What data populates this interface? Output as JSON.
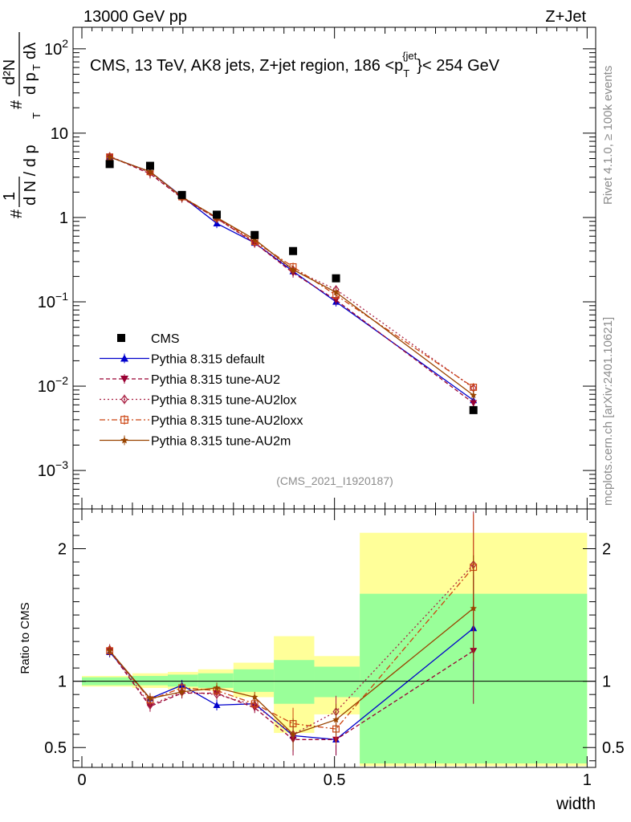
{
  "header": {
    "left": "13000 GeV pp",
    "right": "Z+Jet",
    "side_rivet": "Rivet 4.1.0, ≥ 100k events",
    "side_mcplots": "mcplots.cern.ch [arXiv:2401.10621]",
    "analysis_id": "(CMS_2021_I1920187)"
  },
  "chart_data": [
    {
      "type": "line",
      "scale": "log",
      "title": "CMS, 13 TeV, AK8 jets, Z+jet region, 186 <p_T^{jet}< 254 GeV",
      "title_parts": {
        "prefix": "CMS, 13 TeV, AK8 jets, Z+jet region, 186 <p",
        "sub": "T",
        "sup": "{jet",
        "suffix": "}< 254 GeV"
      },
      "ylabel_parts": {
        "hash": "#",
        "one": "1",
        "den": "d N / d p",
        "T": "T",
        "num": "d²N",
        "den2": "d p",
        "lambda": "dλ"
      },
      "xlabel": "width",
      "xlim": [
        0,
        1
      ],
      "ylim": [
        0.00035,
        180
      ],
      "y_ticks": [
        {
          "value": 0.001,
          "base": "10",
          "exp": "−3"
        },
        {
          "value": 0.01,
          "base": "10",
          "exp": "−2"
        },
        {
          "value": 0.1,
          "base": "10",
          "exp": "−1"
        },
        {
          "value": 1,
          "base": "1",
          "exp": ""
        },
        {
          "value": 10,
          "base": "10",
          "exp": ""
        },
        {
          "value": 100,
          "base": "10",
          "exp": "2"
        }
      ],
      "x": [
        0.055,
        0.135,
        0.198,
        0.267,
        0.342,
        0.418,
        0.503,
        0.775
      ],
      "cms": {
        "name": "CMS",
        "values": [
          4.3,
          4.1,
          1.85,
          1.08,
          0.62,
          0.4,
          0.19,
          0.0052
        ],
        "color": "#000000"
      },
      "series": [
        {
          "name": "Pythia 8.315 default",
          "values": [
            5.2,
            3.5,
            1.78,
            0.85,
            0.5,
            0.23,
            0.1,
            0.0068
          ],
          "color": "#0000cc",
          "marker": "triangle-up",
          "dash": ""
        },
        {
          "name": "Pythia 8.315 tune-AU2",
          "values": [
            5.3,
            3.3,
            1.7,
            0.98,
            0.5,
            0.22,
            0.105,
            0.0063
          ],
          "color": "#990033",
          "marker": "triangle-down",
          "dash": "5,3"
        },
        {
          "name": "Pythia 8.315 tune-AU2lox",
          "values": [
            5.3,
            3.4,
            1.72,
            0.97,
            0.5,
            0.24,
            0.14,
            0.0095
          ],
          "color": "#aa2244",
          "marker": "diamond",
          "dash": "2,3"
        },
        {
          "name": "Pythia 8.315 tune-AU2loxx",
          "values": [
            5.2,
            3.5,
            1.76,
            1.0,
            0.52,
            0.26,
            0.12,
            0.0097
          ],
          "color": "#cc4411",
          "marker": "open-square",
          "dash": "7,3,2,3"
        },
        {
          "name": "Pythia 8.315 tune-AU2m",
          "values": [
            5.2,
            3.5,
            1.75,
            1.0,
            0.55,
            0.24,
            0.13,
            0.0078
          ],
          "color": "#994400",
          "marker": "star",
          "dash": ""
        }
      ]
    },
    {
      "type": "line",
      "ylabel": "Ratio to CMS",
      "xlabel": "width",
      "xlim": [
        0,
        1
      ],
      "ylim": [
        0.35,
        2.3
      ],
      "y_ticks": [
        "0.5",
        "1",
        "2"
      ],
      "y_tick_values": [
        0.5,
        1,
        2
      ],
      "x_ticks": [
        "0",
        "0.5",
        "1"
      ],
      "x_tick_values": [
        0,
        0.5,
        1
      ],
      "band_bins": [
        0,
        0.1,
        0.17,
        0.23,
        0.3,
        0.38,
        0.46,
        0.55,
        1
      ],
      "band_yellow": [
        [
          0.96,
          1.04
        ],
        [
          0.95,
          1.06
        ],
        [
          0.94,
          1.07
        ],
        [
          0.93,
          1.09
        ],
        [
          0.88,
          1.14
        ],
        [
          0.61,
          1.34
        ],
        [
          0.75,
          1.19
        ],
        [
          0.36,
          2.12
        ]
      ],
      "band_green": [
        [
          0.97,
          1.03
        ],
        [
          0.97,
          1.04
        ],
        [
          0.96,
          1.05
        ],
        [
          0.95,
          1.06
        ],
        [
          0.92,
          1.09
        ],
        [
          0.83,
          1.16
        ],
        [
          0.88,
          1.11
        ],
        [
          0.38,
          1.66
        ]
      ],
      "x": [
        0.055,
        0.135,
        0.198,
        0.267,
        0.342,
        0.418,
        0.503,
        0.775
      ],
      "series": [
        {
          "name": "Pythia 8.315 default",
          "values": [
            1.22,
            0.87,
            0.97,
            0.82,
            0.83,
            0.59,
            0.56,
            1.4
          ],
          "color": "#0000cc",
          "marker": "triangle-up",
          "dash": ""
        },
        {
          "name": "Pythia 8.315 tune-AU2",
          "values": [
            1.23,
            0.81,
            0.91,
            0.91,
            0.8,
            0.56,
            0.56,
            1.23
          ],
          "color": "#990033",
          "marker": "triangle-down",
          "dash": "5,3"
        },
        {
          "name": "Pythia 8.315 tune-AU2lox",
          "values": [
            1.24,
            0.82,
            0.92,
            0.9,
            0.82,
            0.6,
            0.77,
            1.88
          ],
          "color": "#aa2244",
          "marker": "diamond",
          "dash": "2,3"
        },
        {
          "name": "Pythia 8.315 tune-AU2loxx",
          "values": [
            1.23,
            0.86,
            0.95,
            0.93,
            0.83,
            0.68,
            0.64,
            1.86
          ],
          "color": "#cc4411",
          "marker": "open-square",
          "dash": "7,3,2,3"
        },
        {
          "name": "Pythia 8.315 tune-AU2m",
          "values": [
            1.23,
            0.87,
            0.92,
            0.95,
            0.88,
            0.6,
            0.71,
            1.55
          ],
          "color": "#994400",
          "marker": "star",
          "dash": ""
        }
      ]
    }
  ]
}
